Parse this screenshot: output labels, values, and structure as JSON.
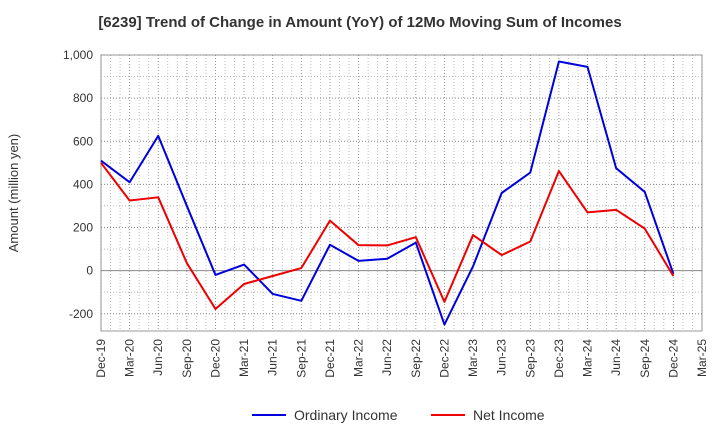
{
  "chart_data": {
    "type": "line",
    "title": "[6239]  Trend of Change in Amount (YoY) of 12Mo Moving Sum of Incomes",
    "ylabel": "Amount (million yen)",
    "xlabel": "",
    "ylim": [
      -280,
      1000
    ],
    "yticks": [
      1000,
      800,
      600,
      400,
      200,
      0,
      -200
    ],
    "ytick_labels": [
      "1,000",
      "800",
      "600",
      "400",
      "200",
      "0",
      "-200"
    ],
    "categories": [
      "Dec-19",
      "Mar-20",
      "Jun-20",
      "Sep-20",
      "Dec-20",
      "Mar-21",
      "Jun-21",
      "Sep-21",
      "Dec-21",
      "Mar-22",
      "Jun-22",
      "Sep-22",
      "Dec-22",
      "Mar-23",
      "Jun-23",
      "Sep-23",
      "Dec-23",
      "Mar-24",
      "Jun-24",
      "Sep-24",
      "Dec-24",
      "Mar-25"
    ],
    "grid": true,
    "legend_position": "bottom",
    "series": [
      {
        "name": "Ordinary Income",
        "color": "#0000dd",
        "values": [
          510,
          410,
          625,
          300,
          -20,
          28,
          -108,
          -140,
          120,
          45,
          55,
          130,
          -250,
          20,
          360,
          455,
          970,
          945,
          475,
          365,
          -15,
          null
        ]
      },
      {
        "name": "Net Income",
        "color": "#ee0000",
        "values": [
          500,
          325,
          340,
          35,
          -178,
          -62,
          -25,
          12,
          232,
          118,
          117,
          155,
          -145,
          165,
          72,
          135,
          462,
          270,
          282,
          195,
          -25,
          null
        ]
      }
    ]
  }
}
